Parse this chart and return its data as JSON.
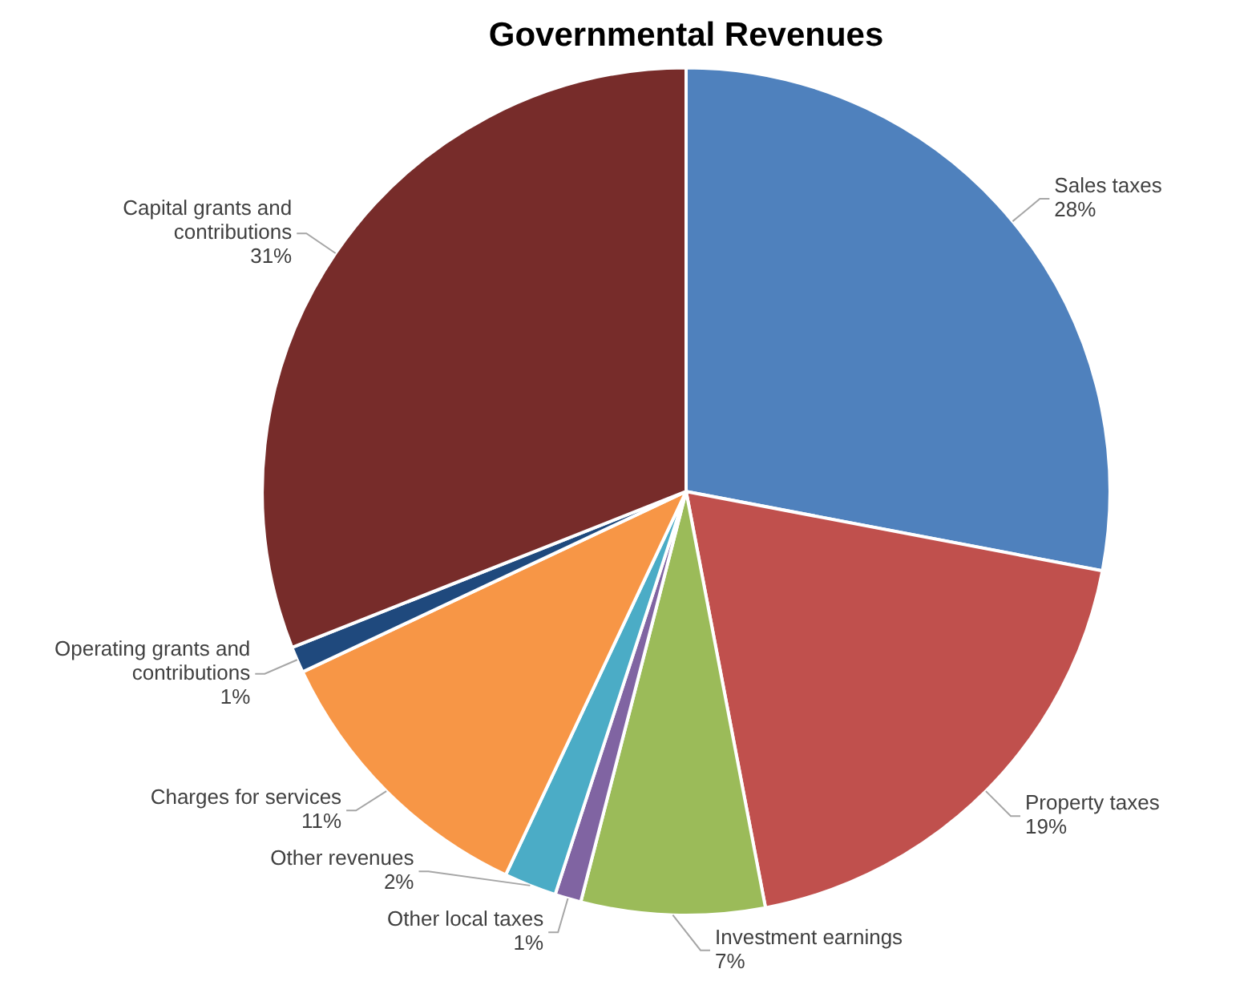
{
  "chart_data": {
    "type": "pie",
    "title": "Governmental Revenues",
    "categories": [
      "Sales taxes",
      "Property taxes",
      "Investment earnings",
      "Other local taxes",
      "Other revenues",
      "Charges for services",
      "Operating grants and contributions",
      "Capital grants and contributions"
    ],
    "values": [
      28,
      19,
      7,
      1,
      2,
      11,
      1,
      31
    ],
    "value_labels": [
      "28%",
      "19%",
      "7%",
      "1%",
      "2%",
      "11%",
      "1%",
      "31%"
    ],
    "colors": [
      "#4f81bd",
      "#c0504d",
      "#9bbb59",
      "#8064a2",
      "#4bacc6",
      "#f79646",
      "#1f497d",
      "#772c2a"
    ],
    "legend": false
  }
}
